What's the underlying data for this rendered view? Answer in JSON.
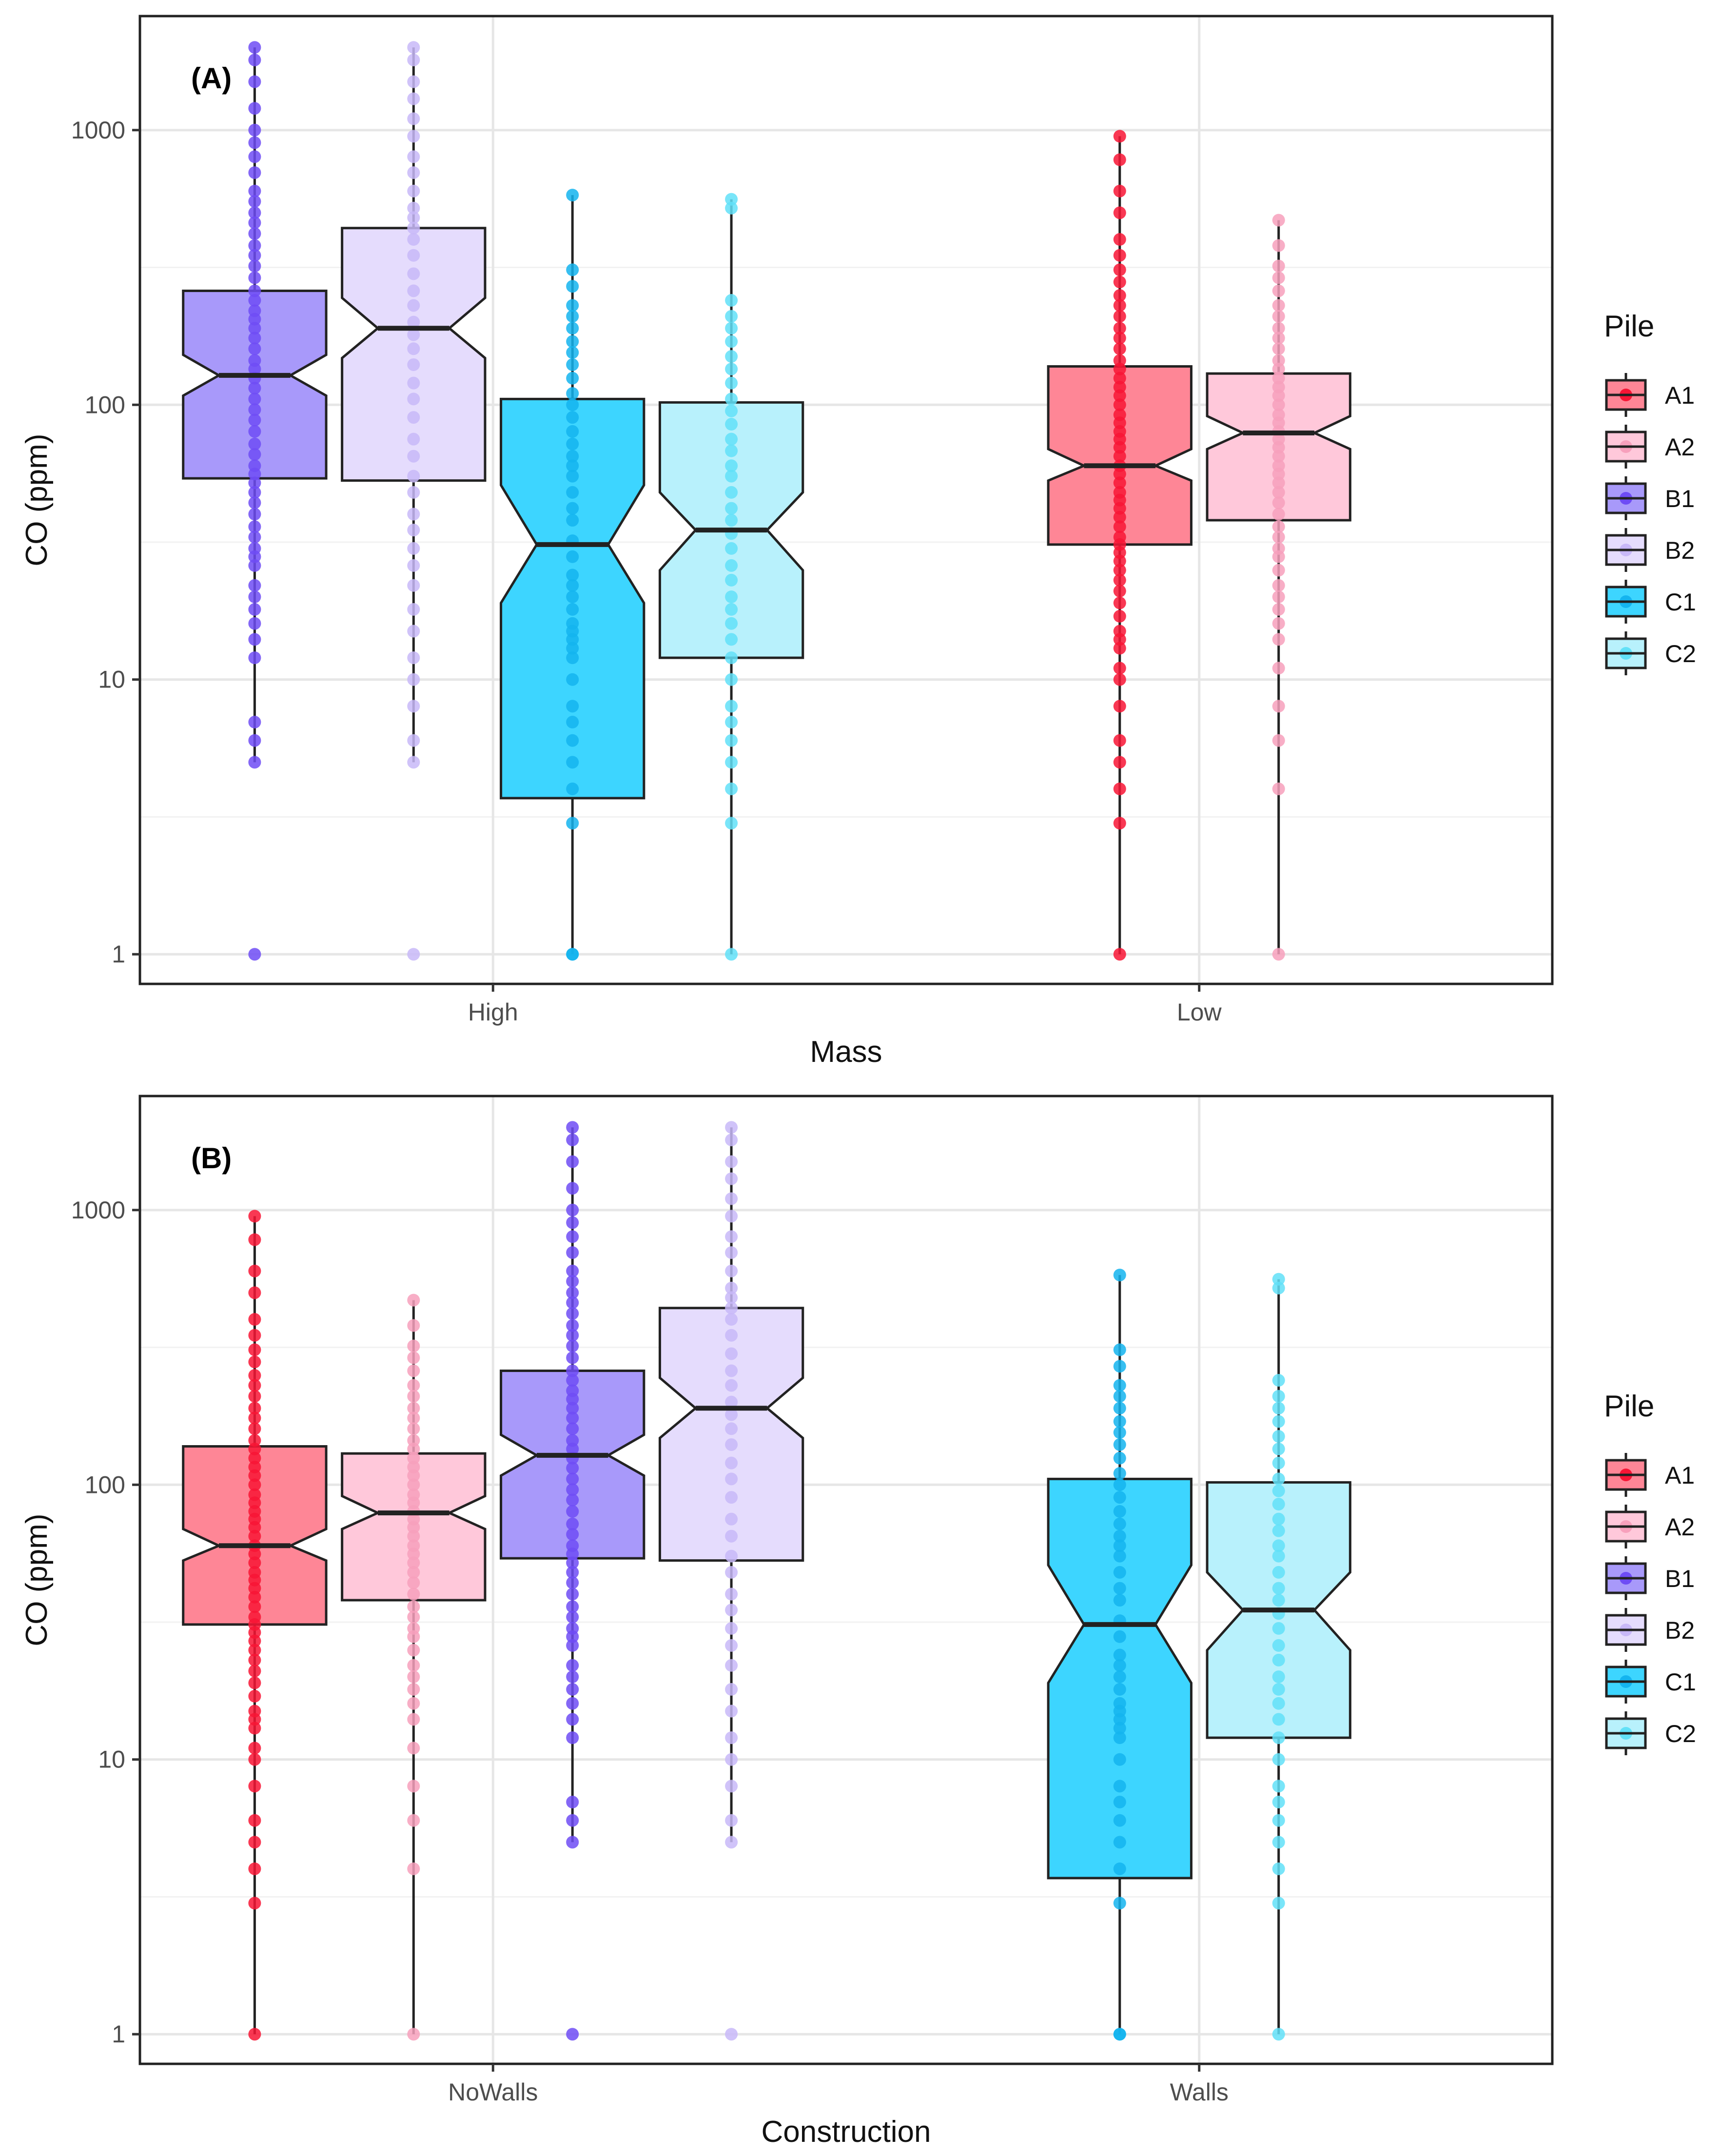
{
  "chart_data": [
    {
      "type": "box",
      "panel_label": "(A)",
      "xlabel": "Mass",
      "ylabel": "CO (ppm)",
      "y_scale": "log10",
      "ylim": [
        0.78,
        2600
      ],
      "yticks": [
        1,
        10,
        100,
        1000
      ],
      "ytick_labels": [
        "1",
        "10",
        "100",
        "1000"
      ],
      "categories": [
        "High",
        "Low"
      ],
      "groups": [
        {
          "category": "High",
          "pile": "B1",
          "color": "#6e4cf5",
          "fill": "#a899fa",
          "q1": 54,
          "median": 128,
          "q3": 260,
          "notch_lo": 108,
          "notch_hi": 152,
          "whisker_lo": 5,
          "whisker_hi": 2000,
          "points": [
            1,
            5,
            6,
            7,
            12,
            14,
            16,
            18,
            20,
            22,
            26,
            28,
            30,
            33,
            36,
            40,
            44,
            48,
            52,
            56,
            60,
            66,
            72,
            80,
            88,
            96,
            105,
            115,
            125,
            135,
            145,
            160,
            175,
            190,
            205,
            220,
            240,
            260,
            290,
            320,
            350,
            380,
            420,
            460,
            500,
            550,
            600,
            700,
            800,
            900,
            1000,
            1200,
            1500,
            1800,
            2000
          ]
        },
        {
          "category": "High",
          "pile": "B2",
          "color": "#c8b8f8",
          "fill": "#e5dcfd",
          "q1": 53,
          "median": 190,
          "q3": 440,
          "notch_lo": 148,
          "notch_hi": 245,
          "whisker_lo": 5,
          "whisker_hi": 2000,
          "points": [
            1,
            5,
            6,
            8,
            10,
            12,
            15,
            18,
            22,
            26,
            30,
            35,
            40,
            48,
            55,
            65,
            75,
            90,
            105,
            120,
            140,
            160,
            180,
            200,
            230,
            260,
            300,
            350,
            400,
            440,
            480,
            520,
            600,
            700,
            800,
            950,
            1100,
            1300,
            1500,
            1800,
            2000
          ]
        },
        {
          "category": "High",
          "pile": "C1",
          "color": "#14b4ef",
          "fill": "#3dd5ff",
          "q1": 3.7,
          "median": 31,
          "q3": 105,
          "notch_lo": 19,
          "notch_hi": 51,
          "whisker_lo": 1,
          "whisker_hi": 580,
          "points": [
            1,
            1,
            3,
            4,
            5,
            6,
            7,
            8,
            10,
            12,
            13,
            14,
            15,
            16,
            18,
            20,
            22,
            24,
            28,
            32,
            38,
            42,
            48,
            55,
            60,
            65,
            72,
            80,
            90,
            100,
            110,
            125,
            140,
            155,
            170,
            190,
            210,
            230,
            270,
            310,
            580
          ]
        },
        {
          "category": "High",
          "pile": "C2",
          "color": "#62e1f8",
          "fill": "#b8f1fc",
          "q1": 12,
          "median": 35,
          "q3": 102,
          "notch_lo": 25,
          "notch_hi": 48,
          "whisker_lo": 1,
          "whisker_hi": 560,
          "points": [
            1,
            3,
            4,
            5,
            6,
            7,
            8,
            10,
            12,
            14,
            16,
            18,
            20,
            23,
            26,
            30,
            34,
            38,
            42,
            48,
            55,
            60,
            68,
            75,
            85,
            95,
            105,
            120,
            135,
            150,
            170,
            190,
            210,
            240,
            520,
            560
          ]
        },
        {
          "category": "Low",
          "pile": "A1",
          "color": "#f81535",
          "fill": "#fe8696",
          "q1": 31,
          "median": 60,
          "q3": 138,
          "notch_lo": 53,
          "notch_hi": 69,
          "whisker_lo": 1,
          "whisker_hi": 950,
          "points": [
            1,
            3,
            4,
            5,
            6,
            8,
            10,
            11,
            13,
            14,
            15,
            17,
            19,
            21,
            23,
            25,
            27,
            29,
            31,
            33,
            36,
            39,
            42,
            45,
            48,
            52,
            56,
            60,
            65,
            70,
            75,
            80,
            86,
            92,
            100,
            108,
            116,
            125,
            135,
            145,
            160,
            175,
            190,
            210,
            230,
            250,
            280,
            310,
            350,
            400,
            500,
            600,
            780,
            950
          ]
        },
        {
          "category": "Low",
          "pile": "A2",
          "color": "#f7a0bc",
          "fill": "#ffc8da",
          "q1": 38,
          "median": 79,
          "q3": 130,
          "notch_lo": 69,
          "notch_hi": 91,
          "whisker_lo": 1,
          "whisker_hi": 470,
          "points": [
            1,
            4,
            6,
            8,
            11,
            14,
            16,
            18,
            20,
            22,
            25,
            28,
            30,
            33,
            36,
            40,
            44,
            48,
            52,
            56,
            60,
            65,
            70,
            75,
            80,
            86,
            92,
            100,
            108,
            116,
            125,
            135,
            145,
            160,
            175,
            190,
            210,
            230,
            260,
            290,
            320,
            380,
            470
          ]
        }
      ]
    },
    {
      "type": "box",
      "panel_label": "(B)",
      "xlabel": "Construction",
      "ylabel": "CO (ppm)",
      "y_scale": "log10",
      "ylim": [
        0.78,
        2600
      ],
      "yticks": [
        1,
        10,
        100,
        1000
      ],
      "ytick_labels": [
        "1",
        "10",
        "100",
        "1000"
      ],
      "categories": [
        "NoWalls",
        "Walls"
      ],
      "groups": [
        {
          "category": "NoWalls",
          "pile": "A1",
          "color": "#f81535",
          "fill": "#fe8696",
          "q1": 31,
          "median": 60,
          "q3": 138,
          "notch_lo": 53,
          "notch_hi": 69,
          "whisker_lo": 1,
          "whisker_hi": 950,
          "points": [
            1,
            3,
            4,
            5,
            6,
            8,
            10,
            11,
            13,
            14,
            15,
            17,
            19,
            21,
            23,
            25,
            27,
            29,
            31,
            33,
            36,
            39,
            42,
            45,
            48,
            52,
            56,
            60,
            65,
            70,
            75,
            80,
            86,
            92,
            100,
            108,
            116,
            125,
            135,
            145,
            160,
            175,
            190,
            210,
            230,
            250,
            280,
            310,
            350,
            400,
            500,
            600,
            780,
            950
          ]
        },
        {
          "category": "NoWalls",
          "pile": "A2",
          "color": "#f7a0bc",
          "fill": "#ffc8da",
          "q1": 38,
          "median": 79,
          "q3": 130,
          "notch_lo": 69,
          "notch_hi": 91,
          "whisker_lo": 1,
          "whisker_hi": 470,
          "points": [
            1,
            4,
            6,
            8,
            11,
            14,
            16,
            18,
            20,
            22,
            25,
            28,
            30,
            33,
            36,
            40,
            44,
            48,
            52,
            56,
            60,
            65,
            70,
            75,
            80,
            86,
            92,
            100,
            108,
            116,
            125,
            135,
            145,
            160,
            175,
            190,
            210,
            230,
            260,
            290,
            320,
            380,
            470
          ]
        },
        {
          "category": "NoWalls",
          "pile": "B1",
          "color": "#6e4cf5",
          "fill": "#a899fa",
          "q1": 54,
          "median": 128,
          "q3": 260,
          "notch_lo": 108,
          "notch_hi": 152,
          "whisker_lo": 5,
          "whisker_hi": 2000,
          "points": [
            1,
            5,
            6,
            7,
            12,
            14,
            16,
            18,
            20,
            22,
            26,
            28,
            30,
            33,
            36,
            40,
            44,
            48,
            52,
            56,
            60,
            66,
            72,
            80,
            88,
            96,
            105,
            115,
            125,
            135,
            145,
            160,
            175,
            190,
            205,
            220,
            240,
            260,
            290,
            320,
            350,
            380,
            420,
            460,
            500,
            550,
            600,
            700,
            800,
            900,
            1000,
            1200,
            1500,
            1800,
            2000
          ]
        },
        {
          "category": "NoWalls",
          "pile": "B2",
          "color": "#c8b8f8",
          "fill": "#e5dcfd",
          "q1": 53,
          "median": 190,
          "q3": 440,
          "notch_lo": 148,
          "notch_hi": 245,
          "whisker_lo": 5,
          "whisker_hi": 2000,
          "points": [
            1,
            5,
            6,
            8,
            10,
            12,
            15,
            18,
            22,
            26,
            30,
            35,
            40,
            48,
            55,
            65,
            75,
            90,
            105,
            120,
            140,
            160,
            180,
            200,
            230,
            260,
            300,
            350,
            400,
            440,
            480,
            520,
            600,
            700,
            800,
            950,
            1100,
            1300,
            1500,
            1800,
            2000
          ]
        },
        {
          "category": "Walls",
          "pile": "C1",
          "color": "#14b4ef",
          "fill": "#3dd5ff",
          "q1": 3.7,
          "median": 31,
          "q3": 105,
          "notch_lo": 19,
          "notch_hi": 51,
          "whisker_lo": 1,
          "whisker_hi": 580,
          "points": [
            1,
            1,
            3,
            4,
            5,
            6,
            7,
            8,
            10,
            12,
            13,
            14,
            15,
            16,
            18,
            20,
            22,
            24,
            28,
            32,
            38,
            42,
            48,
            55,
            60,
            65,
            72,
            80,
            90,
            100,
            110,
            125,
            140,
            155,
            170,
            190,
            210,
            230,
            270,
            310,
            580
          ]
        },
        {
          "category": "Walls",
          "pile": "C2",
          "color": "#62e1f8",
          "fill": "#b8f1fc",
          "q1": 12,
          "median": 35,
          "q3": 102,
          "notch_lo": 25,
          "notch_hi": 48,
          "whisker_lo": 1,
          "whisker_hi": 560,
          "points": [
            1,
            3,
            4,
            5,
            6,
            7,
            8,
            10,
            12,
            14,
            16,
            18,
            20,
            23,
            26,
            30,
            34,
            38,
            42,
            48,
            55,
            60,
            68,
            75,
            85,
            95,
            105,
            120,
            135,
            150,
            170,
            190,
            210,
            240,
            520,
            560
          ]
        }
      ]
    }
  ],
  "legend": {
    "title": "Pile",
    "entries": [
      {
        "label": "A1",
        "color": "#f81535",
        "fill": "#fe8696"
      },
      {
        "label": "A2",
        "color": "#f7a0bc",
        "fill": "#ffc8da"
      },
      {
        "label": "B1",
        "color": "#6e4cf5",
        "fill": "#a899fa"
      },
      {
        "label": "B2",
        "color": "#c8b8f8",
        "fill": "#e5dcfd"
      },
      {
        "label": "C1",
        "color": "#14b4ef",
        "fill": "#3dd5ff"
      },
      {
        "label": "C2",
        "color": "#62e1f8",
        "fill": "#b8f1fc"
      }
    ],
    "placement": "right"
  },
  "grid": true
}
